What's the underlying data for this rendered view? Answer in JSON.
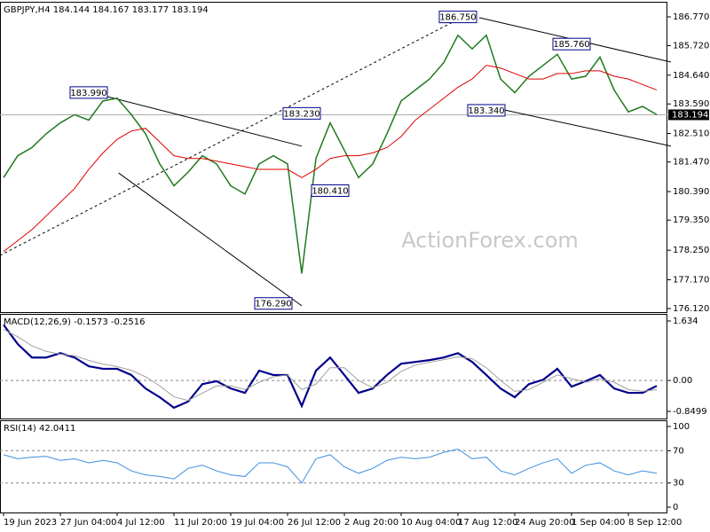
{
  "chart_data": [
    {
      "type": "line",
      "title": "GBPJPY,H4 184.144 184.167 183.177 183.194",
      "watermark": "ActionForex.com",
      "ylim": [
        175.99,
        187.32
      ],
      "yticks": [
        {
          "value": 186.77,
          "label": "186.770"
        },
        {
          "value": 185.72,
          "label": "185.720"
        },
        {
          "value": 184.64,
          "label": "184.640"
        },
        {
          "value": 183.59,
          "label": "183.590"
        },
        {
          "value": 182.51,
          "label": "182.510"
        },
        {
          "value": 181.47,
          "label": "181.470"
        },
        {
          "value": 180.39,
          "label": "180.390"
        },
        {
          "value": 179.35,
          "label": "179.350"
        },
        {
          "value": 178.25,
          "label": "178.250"
        },
        {
          "value": 177.17,
          "label": "177.170"
        },
        {
          "value": 176.12,
          "label": "176.120"
        }
      ],
      "last_price": 183.194,
      "series": [
        {
          "color": "#1f7a1f",
          "width": 1.5,
          "values": [
            180.9,
            181.7,
            182.0,
            182.5,
            182.9,
            183.2,
            183.0,
            183.7,
            183.8,
            183.2,
            182.5,
            181.4,
            180.6,
            181.1,
            181.7,
            181.4,
            180.6,
            180.3,
            181.4,
            181.7,
            181.4,
            177.4,
            181.6,
            182.9,
            181.9,
            180.9,
            181.4,
            182.5,
            183.7,
            184.1,
            184.5,
            185.1,
            186.1,
            185.6,
            186.1,
            184.5,
            184.0,
            184.6,
            185.0,
            185.4,
            184.5,
            184.6,
            185.3,
            184.1,
            183.3,
            183.5,
            183.2
          ]
        },
        {
          "color": "#e00000",
          "width": 1,
          "values": [
            178.2,
            178.6,
            179.0,
            179.5,
            180.0,
            180.5,
            181.2,
            181.8,
            182.3,
            182.6,
            182.7,
            182.2,
            181.7,
            181.6,
            181.6,
            181.5,
            181.4,
            181.3,
            181.2,
            181.2,
            181.2,
            180.9,
            181.2,
            181.6,
            181.7,
            181.7,
            181.8,
            182.0,
            182.4,
            183.0,
            183.4,
            183.8,
            184.2,
            184.5,
            185.0,
            184.9,
            184.7,
            184.5,
            184.5,
            184.7,
            184.7,
            184.8,
            184.8,
            184.6,
            184.5,
            184.3,
            184.1
          ]
        }
      ],
      "annotations": [
        {
          "value": 183.99,
          "label": "183.990",
          "index": 6
        },
        {
          "value": 183.23,
          "label": "183.230",
          "index": 21
        },
        {
          "value": 180.41,
          "label": "180.410",
          "index": 23
        },
        {
          "value": 176.29,
          "label": "176.290",
          "index": 19
        },
        {
          "value": 186.75,
          "label": "186.750",
          "index": 32
        },
        {
          "value": 185.76,
          "label": "185.760",
          "index": 40
        },
        {
          "value": 183.34,
          "label": "183.340",
          "index": 34
        }
      ],
      "lines": [
        {
          "x": [
            6.3,
            21
          ],
          "y": [
            183.99,
            182.05
          ],
          "style": "solid"
        },
        {
          "x": [
            8.1,
            21
          ],
          "y": [
            181.07,
            176.22
          ],
          "style": "solid"
        },
        {
          "x": [
            -0.25,
            32.25
          ],
          "y": [
            178.06,
            186.74
          ],
          "style": "dashed"
        },
        {
          "x": [
            33.5,
            47
          ],
          "y": [
            186.74,
            185.12
          ],
          "style": "solid"
        },
        {
          "x": [
            33.5,
            47
          ],
          "y": [
            183.57,
            182.05
          ],
          "style": "solid"
        }
      ]
    },
    {
      "type": "line",
      "title": "MACD(12,26,9) -0.1573 -0.2516",
      "ylim": [
        -1.045,
        1.829
      ],
      "yticks": [
        1.634,
        {
          "value": 0,
          "label": "0.00"
        },
        -0.8499
      ],
      "levels": [
        0
      ],
      "series": [
        {
          "color": "#00008b",
          "width": 2.2,
          "values": [
            1.53,
            1.0,
            0.63,
            0.63,
            0.75,
            0.63,
            0.39,
            0.32,
            0.32,
            0.15,
            -0.22,
            -0.46,
            -0.75,
            -0.58,
            -0.1,
            -0.02,
            -0.22,
            -0.34,
            0.27,
            0.15,
            0.15,
            -0.7,
            0.27,
            0.63,
            0.15,
            -0.34,
            -0.22,
            0.15,
            0.46,
            0.51,
            0.56,
            0.63,
            0.75,
            0.51,
            0.15,
            -0.22,
            -0.46,
            -0.1,
            0.02,
            0.32,
            -0.17,
            -0.02,
            0.15,
            -0.22,
            -0.34,
            -0.34,
            -0.15
          ]
        },
        {
          "color": "#a0a0a0",
          "width": 1,
          "values": [
            1.4,
            1.2,
            0.95,
            0.8,
            0.72,
            0.68,
            0.55,
            0.45,
            0.38,
            0.28,
            0.1,
            -0.15,
            -0.45,
            -0.55,
            -0.35,
            -0.15,
            -0.15,
            -0.25,
            -0.05,
            0.1,
            0.15,
            -0.25,
            -0.1,
            0.35,
            0.35,
            0.0,
            -0.2,
            -0.05,
            0.25,
            0.42,
            0.5,
            0.57,
            0.65,
            0.6,
            0.35,
            0.0,
            -0.3,
            -0.25,
            -0.05,
            0.15,
            0.05,
            -0.05,
            0.05,
            -0.05,
            -0.25,
            -0.3,
            -0.25
          ]
        }
      ]
    },
    {
      "type": "line",
      "title": "RSI(14) 42.0411",
      "ylim": [
        -6.6,
        107.7
      ],
      "yticks": [
        100,
        70,
        30,
        0
      ],
      "levels": [
        70,
        30
      ],
      "categories": [
        "19 Jun 2023",
        null,
        null,
        null,
        "27 Jun 04:00",
        null,
        null,
        null,
        "4 Jul 12:00",
        null,
        null,
        null,
        "11 Jul 20:00",
        null,
        null,
        null,
        "19 Jul 04:00",
        null,
        null,
        null,
        "26 Jul 12:00",
        null,
        null,
        null,
        "2 Aug 20:00",
        null,
        null,
        null,
        "10 Aug 04:00",
        null,
        null,
        null,
        "17 Aug 12:00",
        null,
        null,
        null,
        "24 Aug 20:00",
        null,
        null,
        null,
        "1 Sep 04:00",
        null,
        null,
        null,
        "8 Sep 12:00",
        null,
        null
      ],
      "series": [
        {
          "color": "#3d8fe0",
          "width": 1,
          "values": [
            65,
            60,
            62,
            63,
            58,
            60,
            55,
            58,
            55,
            45,
            40,
            38,
            35,
            48,
            52,
            45,
            40,
            38,
            55,
            55,
            50,
            30,
            60,
            65,
            50,
            42,
            48,
            58,
            62,
            60,
            62,
            68,
            72,
            60,
            62,
            45,
            40,
            48,
            55,
            60,
            42,
            52,
            55,
            45,
            40,
            45,
            42
          ]
        }
      ]
    }
  ]
}
